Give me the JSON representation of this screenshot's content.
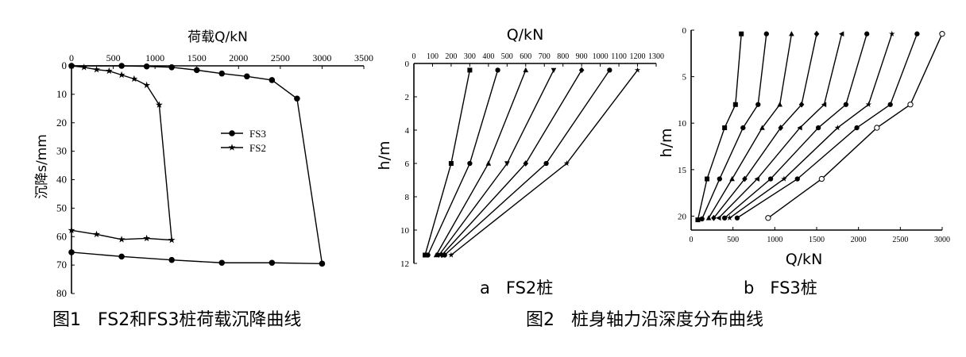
{
  "captions": {
    "fig1": "图1   FS2和FS3桩荷载沉降曲线",
    "fig2": "图2   桩身轴力沿深度分布曲线",
    "sub_a": "a   FS2桩",
    "sub_b": "b   FS3桩"
  },
  "chart_data": [
    {
      "id": "fig1",
      "type": "line",
      "xlabel": "荷载Q/kN",
      "ylabel": "沉降s/mm",
      "xlim": [
        0,
        3500
      ],
      "ylim": [
        0,
        80
      ],
      "x_axis_position": "top",
      "y_inverted": true,
      "xticks": [
        0,
        500,
        1000,
        1500,
        2000,
        2500,
        3000,
        3500
      ],
      "yticks": [
        0,
        10,
        20,
        30,
        40,
        50,
        60,
        70,
        80
      ],
      "legend_position": "right-middle",
      "series": [
        {
          "name": "FS3",
          "marker": "circle",
          "points": [
            [
              0,
              0
            ],
            [
              600,
              0
            ],
            [
              900,
              0.2
            ],
            [
              1200,
              0.5
            ],
            [
              1500,
              1.5
            ],
            [
              1800,
              2.7
            ],
            [
              2100,
              3.7
            ],
            [
              2400,
              5
            ],
            [
              2700,
              11.5
            ],
            [
              3000,
              69.5
            ],
            [
              2400,
              69.2
            ],
            [
              1800,
              69.2
            ],
            [
              1200,
              68.2
            ],
            [
              600,
              67.0
            ],
            [
              0,
              65.5
            ]
          ]
        },
        {
          "name": "FS2",
          "marker": "star",
          "points": [
            [
              0,
              0
            ],
            [
              150,
              0.5
            ],
            [
              300,
              1.3
            ],
            [
              450,
              1.8
            ],
            [
              600,
              3.2
            ],
            [
              750,
              4.6
            ],
            [
              900,
              6.8
            ],
            [
              1050,
              13.7
            ],
            [
              1200,
              61.2
            ],
            [
              900,
              60.6
            ],
            [
              600,
              61
            ],
            [
              300,
              59.2
            ],
            [
              0,
              57.8
            ]
          ]
        }
      ]
    },
    {
      "id": "fig2a",
      "type": "line",
      "xlabel": "Q/kN",
      "ylabel": "h/m",
      "xlim": [
        0,
        1300
      ],
      "ylim": [
        0,
        12
      ],
      "x_axis_position": "top",
      "y_inverted": true,
      "xticks": [
        0,
        100,
        200,
        300,
        400,
        500,
        600,
        700,
        800,
        900,
        1000,
        1100,
        1200,
        1300
      ],
      "yticks": [
        0,
        2,
        4,
        6,
        8,
        10,
        12
      ],
      "series": [
        {
          "marker": "square",
          "points": [
            [
              300,
              0.4
            ],
            [
              200,
              6
            ],
            [
              60,
              11.5
            ]
          ]
        },
        {
          "marker": "circle",
          "points": [
            [
              450,
              0.4
            ],
            [
              300,
              6
            ],
            [
              75,
              11.5
            ]
          ]
        },
        {
          "marker": "triangle",
          "points": [
            [
              600,
              0.4
            ],
            [
              400,
              6
            ],
            [
              120,
              11.5
            ]
          ]
        },
        {
          "marker": "triangle-down",
          "points": [
            [
              750,
              0.4
            ],
            [
              500,
              6
            ],
            [
              135,
              11.5
            ]
          ]
        },
        {
          "marker": "diamond",
          "points": [
            [
              900,
              0.4
            ],
            [
              600,
              6
            ],
            [
              150,
              11.5
            ]
          ]
        },
        {
          "marker": "circle",
          "points": [
            [
              1050,
              0.4
            ],
            [
              710,
              6
            ],
            [
              165,
              11.5
            ]
          ]
        },
        {
          "marker": "star",
          "points": [
            [
              1200,
              0.4
            ],
            [
              820,
              6
            ],
            [
              200,
              11.5
            ]
          ]
        }
      ]
    },
    {
      "id": "fig2b",
      "type": "line",
      "xlabel": "Q/kN",
      "ylabel": "h/m",
      "xlim": [
        0,
        3000
      ],
      "ylim": [
        0,
        21.5
      ],
      "x_axis_position": "bottom",
      "y_inverted": true,
      "xticks": [
        0,
        500,
        1000,
        1500,
        2000,
        2500,
        3000
      ],
      "yticks": [
        0,
        5,
        10,
        15,
        20
      ],
      "series": [
        {
          "marker": "square",
          "points": [
            [
              600,
              0.4
            ],
            [
              530,
              8
            ],
            [
              400,
              10.5
            ],
            [
              190,
              16
            ],
            [
              80,
              20.4
            ]
          ]
        },
        {
          "marker": "circle",
          "points": [
            [
              900,
              0.4
            ],
            [
              800,
              8
            ],
            [
              620,
              10.5
            ],
            [
              340,
              16
            ],
            [
              130,
              20.3
            ]
          ]
        },
        {
          "marker": "triangle",
          "points": [
            [
              1200,
              0.4
            ],
            [
              1060,
              8
            ],
            [
              850,
              10.5
            ],
            [
              490,
              16
            ],
            [
              210,
              20.2
            ]
          ]
        },
        {
          "marker": "diamond",
          "points": [
            [
              1500,
              0.4
            ],
            [
              1320,
              8
            ],
            [
              1070,
              10.5
            ],
            [
              640,
              16
            ],
            [
              270,
              20.2
            ]
          ]
        },
        {
          "marker": "triangle-left",
          "points": [
            [
              1800,
              0.4
            ],
            [
              1590,
              8
            ],
            [
              1300,
              10.5
            ],
            [
              790,
              16
            ],
            [
              330,
              20.2
            ]
          ]
        },
        {
          "marker": "circle",
          "points": [
            [
              2100,
              0.4
            ],
            [
              1850,
              8
            ],
            [
              1520,
              10.5
            ],
            [
              950,
              16
            ],
            [
              400,
              20.2
            ]
          ]
        },
        {
          "marker": "star",
          "points": [
            [
              2400,
              0.4
            ],
            [
              2120,
              8
            ],
            [
              1750,
              10.5
            ],
            [
              1110,
              16
            ],
            [
              460,
              20.2
            ]
          ]
        },
        {
          "marker": "circle",
          "points": [
            [
              2700,
              0.4
            ],
            [
              2380,
              8
            ],
            [
              1980,
              10.5
            ],
            [
              1270,
              16
            ],
            [
              550,
              20.2
            ]
          ]
        },
        {
          "marker": "circle-open",
          "points": [
            [
              3000,
              0.4
            ],
            [
              2620,
              8
            ],
            [
              2220,
              10.5
            ],
            [
              1560,
              16
            ],
            [
              920,
              20.2
            ]
          ]
        }
      ]
    }
  ]
}
